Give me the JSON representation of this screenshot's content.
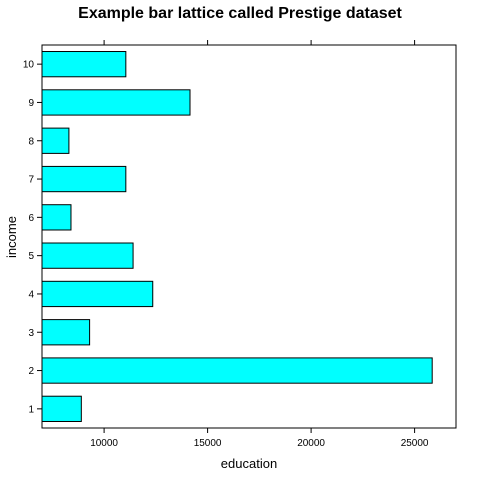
{
  "chart_data": {
    "type": "bar",
    "orientation": "horizontal",
    "title": "Example bar lattice called Prestige dataset",
    "xlabel": "education",
    "ylabel": "income",
    "categories": [
      "1",
      "2",
      "3",
      "4",
      "5",
      "6",
      "7",
      "8",
      "9",
      "10"
    ],
    "values": [
      8900,
      25850,
      9300,
      12350,
      11400,
      8400,
      11050,
      8300,
      14150,
      11050
    ],
    "xlim": [
      7000,
      27000
    ],
    "xticks": [
      10000,
      15000,
      20000,
      25000
    ],
    "xtick_labels": [
      "10000",
      "15000",
      "20000",
      "25000"
    ],
    "bar_color": "#00ffff",
    "bar_border_color": "#000000",
    "grid": false
  }
}
